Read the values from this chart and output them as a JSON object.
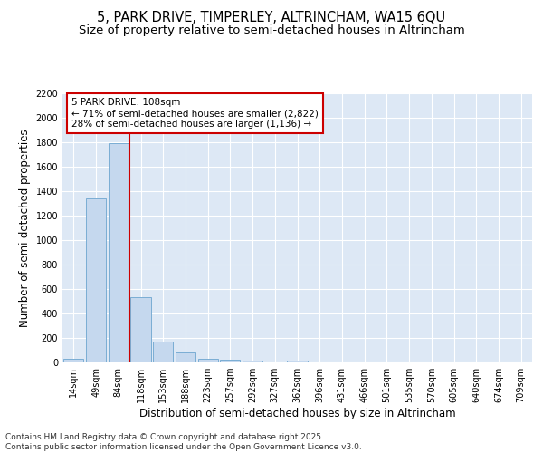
{
  "title_line1": "5, PARK DRIVE, TIMPERLEY, ALTRINCHAM, WA15 6QU",
  "title_line2": "Size of property relative to semi-detached houses in Altrincham",
  "xlabel": "Distribution of semi-detached houses by size in Altrincham",
  "ylabel": "Number of semi-detached properties",
  "categories": [
    "14sqm",
    "49sqm",
    "84sqm",
    "118sqm",
    "153sqm",
    "188sqm",
    "223sqm",
    "257sqm",
    "292sqm",
    "327sqm",
    "362sqm",
    "396sqm",
    "431sqm",
    "466sqm",
    "501sqm",
    "535sqm",
    "570sqm",
    "605sqm",
    "640sqm",
    "674sqm",
    "709sqm"
  ],
  "values": [
    28,
    1340,
    1790,
    535,
    170,
    85,
    30,
    20,
    15,
    0,
    15,
    0,
    0,
    0,
    0,
    0,
    0,
    0,
    0,
    0,
    0
  ],
  "bar_color": "#c5d8ee",
  "bar_edge_color": "#7aadd4",
  "vline_color": "#cc0000",
  "annotation_text": "5 PARK DRIVE: 108sqm\n← 71% of semi-detached houses are smaller (2,822)\n28% of semi-detached houses are larger (1,136) →",
  "annotation_box_color": "#ffffff",
  "annotation_box_edge_color": "#cc0000",
  "ylim": [
    0,
    2200
  ],
  "yticks": [
    0,
    200,
    400,
    600,
    800,
    1000,
    1200,
    1400,
    1600,
    1800,
    2000,
    2200
  ],
  "background_color": "#dde8f5",
  "grid_color": "#ffffff",
  "footer_text": "Contains HM Land Registry data © Crown copyright and database right 2025.\nContains public sector information licensed under the Open Government Licence v3.0.",
  "title_fontsize": 10.5,
  "subtitle_fontsize": 9.5,
  "axis_label_fontsize": 8.5,
  "tick_fontsize": 7,
  "annotation_fontsize": 7.5,
  "footer_fontsize": 6.5
}
